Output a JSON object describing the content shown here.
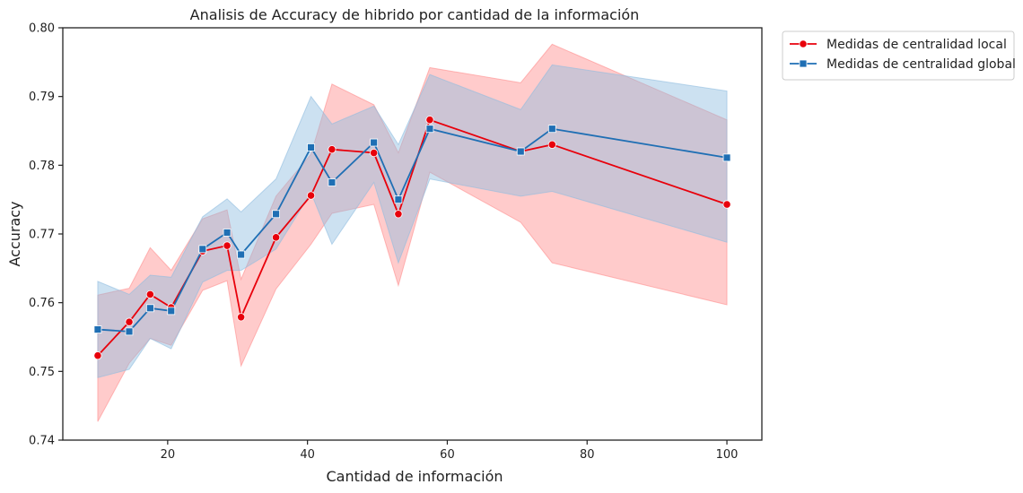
{
  "chart_data": {
    "type": "line",
    "title": "Analisis de Accuracy de hibrido por cantidad de la información",
    "xlabel": "Cantidad de información",
    "ylabel": "Accuracy",
    "xlim": [
      5,
      105
    ],
    "ylim": [
      0.74,
      0.8
    ],
    "xticks": [
      20,
      40,
      60,
      80,
      100
    ],
    "xtick_labels": [
      "20",
      "40",
      "60",
      "80",
      "100"
    ],
    "yticks": [
      0.74,
      0.75,
      0.76,
      0.77,
      0.78,
      0.79,
      0.8
    ],
    "ytick_labels": [
      "0.74",
      "0.75",
      "0.76",
      "0.77",
      "0.78",
      "0.79",
      "0.80"
    ],
    "grid": false,
    "legend_position": "outside-top-right",
    "series": [
      {
        "name": "Medidas de centralidad local",
        "color": "#e8000b",
        "band_color": "#ff8c8c",
        "marker": "circle",
        "x": [
          10,
          14.5,
          17.5,
          20.5,
          25,
          28.5,
          30.5,
          35.5,
          40.5,
          43.5,
          49.5,
          53,
          57.5,
          70.5,
          75,
          100
        ],
        "y": [
          0.7523,
          0.7572,
          0.7612,
          0.7593,
          0.7675,
          0.7683,
          0.7579,
          0.7695,
          0.7756,
          0.7823,
          0.7818,
          0.7729,
          0.7866,
          0.782,
          0.783,
          0.7743
        ],
        "ci_lower": [
          0.7427,
          0.7512,
          0.7548,
          0.7538,
          0.7618,
          0.7632,
          0.7508,
          0.762,
          0.7685,
          0.773,
          0.7743,
          0.7625,
          0.779,
          0.7717,
          0.7658,
          0.7597
        ],
        "ci_upper": [
          0.7611,
          0.7621,
          0.768,
          0.7647,
          0.7722,
          0.7735,
          0.7634,
          0.7755,
          0.7816,
          0.7918,
          0.7888,
          0.7818,
          0.7942,
          0.792,
          0.7976,
          0.7866
        ]
      },
      {
        "name": "Medidas de centralidad global",
        "color": "#1f6fb4",
        "band_color": "#8fbcdf",
        "marker": "square",
        "x": [
          10,
          14.5,
          17.5,
          20.5,
          25,
          28.5,
          30.5,
          35.5,
          40.5,
          43.5,
          49.5,
          53,
          57.5,
          70.5,
          75,
          100
        ],
        "y": [
          0.7561,
          0.7558,
          0.7592,
          0.7588,
          0.7678,
          0.7702,
          0.767,
          0.7729,
          0.7826,
          0.7775,
          0.7833,
          0.775,
          0.7853,
          0.782,
          0.7853,
          0.7811
        ],
        "ci_lower": [
          0.7491,
          0.7503,
          0.7548,
          0.7533,
          0.763,
          0.7647,
          0.7647,
          0.7678,
          0.776,
          0.7685,
          0.7775,
          0.7658,
          0.778,
          0.7755,
          0.7762,
          0.7688
        ],
        "ci_upper": [
          0.7631,
          0.7612,
          0.764,
          0.7637,
          0.7725,
          0.7751,
          0.7732,
          0.778,
          0.79,
          0.786,
          0.7886,
          0.783,
          0.7932,
          0.7881,
          0.7946,
          0.7908
        ]
      }
    ]
  }
}
